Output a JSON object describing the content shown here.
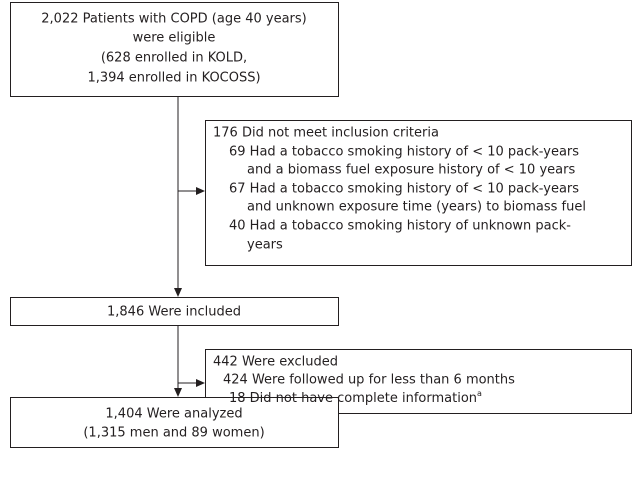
{
  "nodes": [
    {
      "lines": [
        "2,022 Patients with COPD (age 40 years)",
        "were eligible",
        "(628 enrolled in KOLD,",
        "1,394 enrolled in KOCOSS)"
      ]
    },
    {
      "lines": [
        "176 Did not meet inclusion criteria",
        "69 Had a tobacco smoking history of < 10 pack-years",
        "and a biomass fuel exposure history of < 10 years",
        "67 Had a tobacco smoking history of < 10 pack-years",
        "and unknown exposure time (years) to biomass fuel",
        "40 Had a tobacco smoking history of unknown pack-",
        "years"
      ]
    },
    {
      "lines": [
        "1,846 Were included"
      ]
    },
    {
      "lines": [
        "442 Were excluded",
        "424 Were followed up for less than 6 months",
        "18 Did not have complete information"
      ],
      "footnote_mark": "a"
    },
    {
      "lines": [
        "1,404 Were analyzed",
        "(1,315 men and 89 women)"
      ]
    }
  ]
}
